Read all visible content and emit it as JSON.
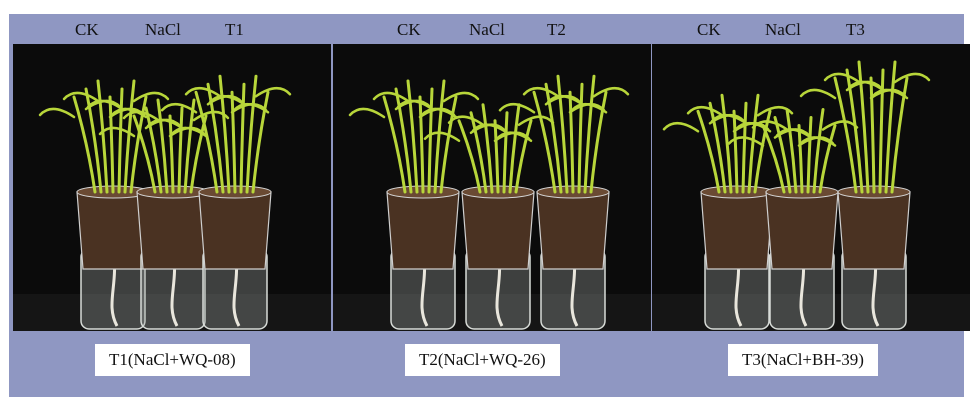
{
  "panels": [
    {
      "top_labels": [
        "CK",
        "NaCl",
        "T1"
      ],
      "caption": "T1(NaCl+WQ-08)"
    },
    {
      "top_labels": [
        "CK",
        "NaCl",
        "T2"
      ],
      "caption": "T2(NaCl+WQ-26)"
    },
    {
      "top_labels": [
        "CK",
        "NaCl",
        "T3"
      ],
      "caption": "T3(NaCl+BH-39)"
    }
  ],
  "colors": {
    "band": "#8f97c2",
    "photo_background": "#0b0b0b",
    "leaf": "#b8d63a",
    "soil": "#4a3222"
  }
}
